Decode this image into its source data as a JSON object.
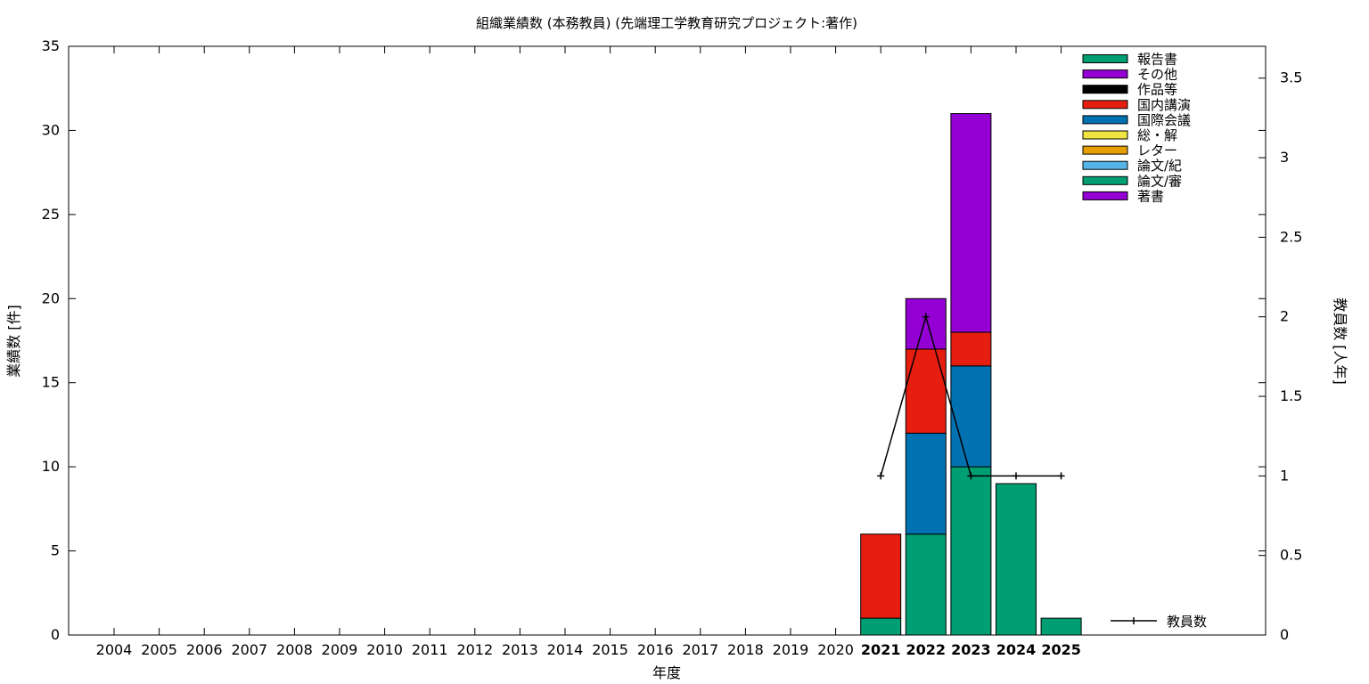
{
  "chart_data": {
    "type": "bar",
    "title": "組織業績数 (本務教員) (先端理工学教育研究プロジェクト:著作)",
    "xlabel": "年度",
    "ylabel": "業績数 [件]",
    "y2label": "教員数 [人年]",
    "ylim": [
      0,
      35
    ],
    "y2lim": [
      0,
      3.7
    ],
    "yticks": [
      "0",
      "5",
      "10",
      "15",
      "20",
      "25",
      "30",
      "35"
    ],
    "y2ticks": [
      "0",
      "0.5",
      "1",
      "1.5",
      "2",
      "2.5",
      "3",
      "3.5"
    ],
    "categories": [
      "2004",
      "2005",
      "2006",
      "2007",
      "2008",
      "2009",
      "2010",
      "2011",
      "2012",
      "2013",
      "2014",
      "2015",
      "2016",
      "2017",
      "2018",
      "2019",
      "2020",
      "2021",
      "2022",
      "2023",
      "2024",
      "2025"
    ],
    "bold_categories": [
      "2021",
      "2022",
      "2023",
      "2024",
      "2025"
    ],
    "legend_position": "top-right",
    "grid": false,
    "legend": [
      {
        "name": "報告書",
        "color": "#009e73"
      },
      {
        "name": "その他",
        "color": "#9400d3"
      },
      {
        "name": "作品等",
        "color": "#000000"
      },
      {
        "name": "国内講演",
        "color": "#e51e10"
      },
      {
        "name": "国際会議",
        "color": "#0072b2"
      },
      {
        "name": "総・解",
        "color": "#f0e442"
      },
      {
        "name": "レター",
        "color": "#e69f00"
      },
      {
        "name": "論文/紀",
        "color": "#56b4e9"
      },
      {
        "name": "論文/審",
        "color": "#009e73"
      },
      {
        "name": "著書",
        "color": "#9400d3"
      }
    ],
    "stack_order": [
      "報告書",
      "論文/審",
      "国際会議",
      "国内講演",
      "その他"
    ],
    "series": [
      {
        "name": "報告書",
        "color": "#009e73",
        "values": [
          0,
          0,
          0,
          0,
          0,
          0,
          0,
          0,
          0,
          0,
          0,
          0,
          0,
          0,
          0,
          0,
          0,
          1,
          6,
          10,
          9,
          1
        ]
      },
      {
        "name": "論文/審",
        "color": "#009e73",
        "values": [
          0,
          0,
          0,
          0,
          0,
          0,
          0,
          0,
          0,
          0,
          0,
          0,
          0,
          0,
          0,
          0,
          0,
          0,
          0,
          0,
          0,
          0
        ]
      },
      {
        "name": "国際会議",
        "color": "#0072b2",
        "values": [
          0,
          0,
          0,
          0,
          0,
          0,
          0,
          0,
          0,
          0,
          0,
          0,
          0,
          0,
          0,
          0,
          0,
          0,
          6,
          6,
          0,
          0
        ]
      },
      {
        "name": "国内講演",
        "color": "#e51e10",
        "values": [
          0,
          0,
          0,
          0,
          0,
          0,
          0,
          0,
          0,
          0,
          0,
          0,
          0,
          0,
          0,
          0,
          0,
          5,
          5,
          2,
          0,
          0
        ]
      },
      {
        "name": "その他",
        "color": "#9400d3",
        "values": [
          0,
          0,
          0,
          0,
          0,
          0,
          0,
          0,
          0,
          0,
          0,
          0,
          0,
          0,
          0,
          0,
          0,
          0,
          3,
          13,
          0,
          0
        ]
      }
    ],
    "line_series": {
      "name": "教員数",
      "axis": "y2",
      "color": "#000000",
      "x": [
        "2021",
        "2022",
        "2023",
        "2024",
        "2025"
      ],
      "values": [
        1,
        2,
        1,
        1,
        1
      ]
    }
  }
}
